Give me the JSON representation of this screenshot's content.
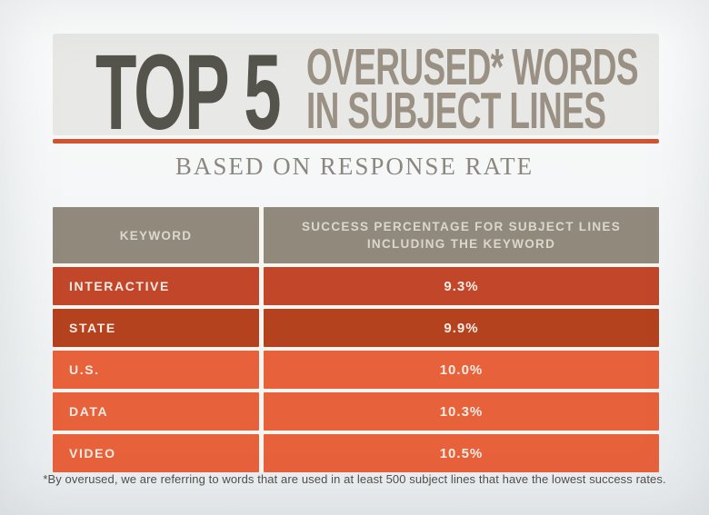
{
  "header": {
    "top5": "TOP 5",
    "subtitle_line1": "OVERUSED* WORDS",
    "subtitle_line2": "IN SUBJECT LINES",
    "panel_bg": "#e8e8e6",
    "top5_color": "#55544c",
    "subtitle_color": "#9a9184",
    "divider_color": "#d5522f"
  },
  "tagline": {
    "text": "BASED ON RESPONSE RATE",
    "color": "#8b8780"
  },
  "table": {
    "header": {
      "keyword_label": "KEYWORD",
      "value_label_line1": "SUCCESS PERCENTAGE FOR SUBJECT LINES",
      "value_label_line2": "INCLUDING THE KEYWORD",
      "bg": "#918a7c",
      "text_color": "#dcd7cd"
    },
    "rows": [
      {
        "keyword": "INTERACTIVE",
        "value": "9.3%",
        "bg": "#c1462a"
      },
      {
        "keyword": "STATE",
        "value": "9.9%",
        "bg": "#b4421f"
      },
      {
        "keyword": "U.S.",
        "value": "10.0%",
        "bg": "#e7613b"
      },
      {
        "keyword": "DATA",
        "value": "10.3%",
        "bg": "#e7613b"
      },
      {
        "keyword": "VIDEO",
        "value": "10.5%",
        "bg": "#e7613b"
      }
    ]
  },
  "footnote": {
    "text": "*By overused, we are referring to words that are used in at least 500 subject lines that have the lowest success rates."
  },
  "chart_data": {
    "type": "table",
    "title": "TOP 5 OVERUSED* WORDS IN SUBJECT LINES",
    "subtitle": "BASED ON RESPONSE RATE",
    "columns": [
      "KEYWORD",
      "SUCCESS PERCENTAGE FOR SUBJECT LINES INCLUDING THE KEYWORD"
    ],
    "categories": [
      "INTERACTIVE",
      "STATE",
      "U.S.",
      "DATA",
      "VIDEO"
    ],
    "values": [
      9.3,
      9.9,
      10.0,
      10.3,
      10.5
    ],
    "value_unit": "%",
    "footnote": "*By overused, we are referring to words that are used in at least 500 subject lines that have the lowest success rates.",
    "legend_position": "none",
    "grid": false
  }
}
